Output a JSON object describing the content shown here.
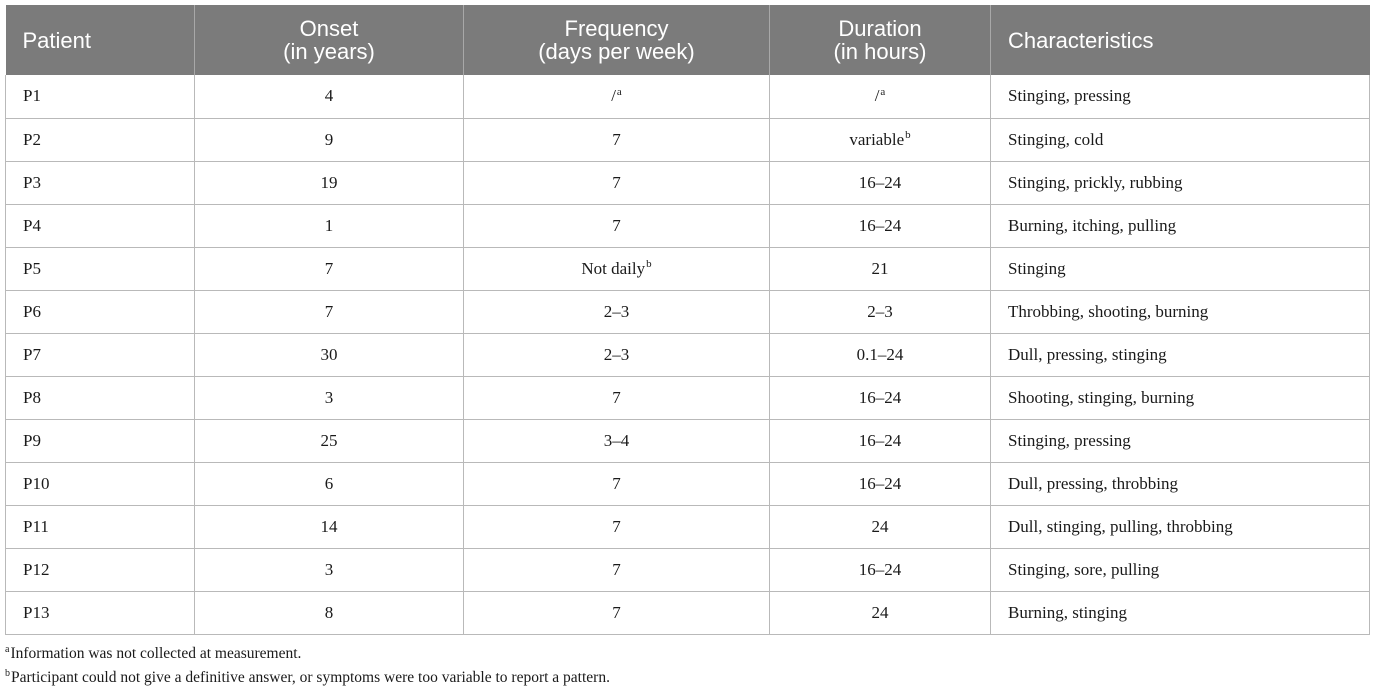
{
  "table": {
    "headers": [
      {
        "line1": "Patient",
        "line2": ""
      },
      {
        "line1": "Onset",
        "line2": "(in years)"
      },
      {
        "line1": "Frequency",
        "line2": "(days per week)"
      },
      {
        "line1": "Duration",
        "line2": "(in hours)"
      },
      {
        "line1": "Characteristics",
        "line2": ""
      }
    ],
    "rows": [
      {
        "patient": "P1",
        "onset": "4",
        "frequency": "/",
        "frequency_sup": "a",
        "duration": "/",
        "duration_sup": "a",
        "characteristics": "Stinging, pressing"
      },
      {
        "patient": "P2",
        "onset": "9",
        "frequency": "7",
        "frequency_sup": "",
        "duration": "variable",
        "duration_sup": "b",
        "characteristics": "Stinging, cold"
      },
      {
        "patient": "P3",
        "onset": "19",
        "frequency": "7",
        "frequency_sup": "",
        "duration": "16–24",
        "duration_sup": "",
        "characteristics": "Stinging, prickly, rubbing"
      },
      {
        "patient": "P4",
        "onset": "1",
        "frequency": "7",
        "frequency_sup": "",
        "duration": "16–24",
        "duration_sup": "",
        "characteristics": "Burning, itching, pulling"
      },
      {
        "patient": "P5",
        "onset": "7",
        "frequency": "Not daily",
        "frequency_sup": "b",
        "duration": "21",
        "duration_sup": "",
        "characteristics": "Stinging"
      },
      {
        "patient": "P6",
        "onset": "7",
        "frequency": "2–3",
        "frequency_sup": "",
        "duration": "2–3",
        "duration_sup": "",
        "characteristics": "Throbbing, shooting, burning"
      },
      {
        "patient": "P7",
        "onset": "30",
        "frequency": "2–3",
        "frequency_sup": "",
        "duration": "0.1–24",
        "duration_sup": "",
        "characteristics": "Dull, pressing, stinging"
      },
      {
        "patient": "P8",
        "onset": "3",
        "frequency": "7",
        "frequency_sup": "",
        "duration": "16–24",
        "duration_sup": "",
        "characteristics": "Shooting, stinging, burning"
      },
      {
        "patient": "P9",
        "onset": "25",
        "frequency": "3–4",
        "frequency_sup": "",
        "duration": "16–24",
        "duration_sup": "",
        "characteristics": "Stinging, pressing"
      },
      {
        "patient": "P10",
        "onset": "6",
        "frequency": "7",
        "frequency_sup": "",
        "duration": "16–24",
        "duration_sup": "",
        "characteristics": "Dull, pressing, throbbing"
      },
      {
        "patient": "P11",
        "onset": "14",
        "frequency": "7",
        "frequency_sup": "",
        "duration": "24",
        "duration_sup": "",
        "characteristics": "Dull, stinging, pulling, throbbing"
      },
      {
        "patient": "P12",
        "onset": "3",
        "frequency": "7",
        "frequency_sup": "",
        "duration": "16–24",
        "duration_sup": "",
        "characteristics": "Stinging, sore, pulling"
      },
      {
        "patient": "P13",
        "onset": "8",
        "frequency": "7",
        "frequency_sup": "",
        "duration": "24",
        "duration_sup": "",
        "characteristics": "Burning, stinging"
      }
    ]
  },
  "footnotes": [
    {
      "mark": "a",
      "text": "Information was not collected at measurement."
    },
    {
      "mark": "b",
      "text": "Participant could not give a definitive answer, or symptoms were too variable to report a pattern."
    }
  ],
  "colors": {
    "header_bg": "#7b7b7b",
    "header_text": "#ffffff",
    "grid_line": "#b9b9b9",
    "body_text": "#1a1a1a"
  }
}
